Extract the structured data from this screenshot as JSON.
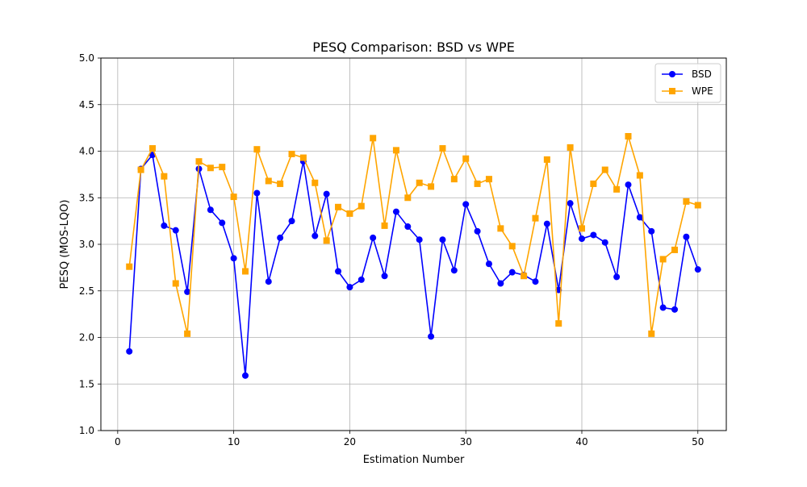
{
  "chart_data": {
    "type": "line",
    "title": "PESQ Comparison: BSD vs WPE",
    "xlabel": "Estimation Number",
    "ylabel": "PESQ (MOS-LQO)",
    "xlim": [
      -1.45,
      52.45
    ],
    "ylim": [
      1.0,
      5.0
    ],
    "xticks": [
      0,
      10,
      20,
      30,
      40,
      50
    ],
    "yticks": [
      1.0,
      1.5,
      2.0,
      2.5,
      3.0,
      3.5,
      4.0,
      4.5,
      5.0
    ],
    "xtick_labels": [
      "0",
      "10",
      "20",
      "30",
      "40",
      "50"
    ],
    "ytick_labels": [
      "1.0",
      "1.5",
      "2.0",
      "2.5",
      "3.0",
      "3.5",
      "4.0",
      "4.5",
      "5.0"
    ],
    "grid": true,
    "legend_position": "top-right",
    "x": [
      1,
      2,
      3,
      4,
      5,
      6,
      7,
      8,
      9,
      10,
      11,
      12,
      13,
      14,
      15,
      16,
      17,
      18,
      19,
      20,
      21,
      22,
      23,
      24,
      25,
      26,
      27,
      28,
      29,
      30,
      31,
      32,
      33,
      34,
      35,
      36,
      37,
      38,
      39,
      40,
      41,
      42,
      43,
      44,
      45,
      46,
      47,
      48,
      49,
      50
    ],
    "series": [
      {
        "name": "BSD",
        "color": "#0000ff",
        "marker": "circle",
        "values": [
          1.85,
          3.81,
          3.96,
          3.2,
          3.15,
          2.49,
          3.81,
          3.37,
          3.23,
          2.85,
          1.59,
          3.55,
          2.6,
          3.07,
          3.25,
          3.89,
          3.09,
          3.54,
          2.71,
          2.54,
          2.62,
          3.07,
          2.66,
          3.35,
          3.19,
          3.05,
          2.01,
          3.05,
          2.72,
          3.43,
          3.14,
          2.79,
          2.58,
          2.7,
          2.67,
          2.6,
          3.22,
          2.51,
          3.44,
          3.06,
          3.1,
          3.02,
          2.65,
          3.64,
          3.29,
          3.14,
          2.32,
          2.3,
          3.08,
          2.73
        ]
      },
      {
        "name": "WPE",
        "color": "#ffa500",
        "marker": "square",
        "values": [
          2.76,
          3.8,
          4.03,
          3.73,
          2.58,
          2.04,
          3.89,
          3.82,
          3.83,
          3.51,
          2.71,
          4.02,
          3.68,
          3.65,
          3.97,
          3.93,
          3.66,
          3.04,
          3.4,
          3.33,
          3.41,
          4.14,
          3.2,
          4.01,
          3.5,
          3.66,
          3.62,
          4.03,
          3.7,
          3.92,
          3.65,
          3.7,
          3.17,
          2.98,
          2.66,
          3.28,
          3.91,
          2.15,
          4.04,
          3.17,
          3.65,
          3.8,
          3.59,
          4.16,
          3.74,
          2.04,
          2.84,
          2.94,
          3.46,
          3.42
        ]
      }
    ]
  }
}
